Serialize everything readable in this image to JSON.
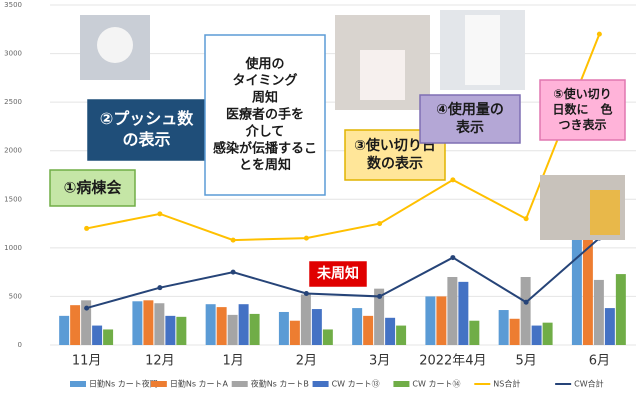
{
  "chart_data": {
    "type": "bar",
    "categories": [
      "11月",
      "12月",
      "1月",
      "2月",
      "3月",
      "2022年4月",
      "5月",
      "6月"
    ],
    "ylim": [
      0,
      3500
    ],
    "yticks": [
      0,
      500,
      1000,
      1500,
      2000,
      2500,
      3000,
      3500
    ],
    "grid": true,
    "series": [
      {
        "name": "日勤Ns カート夜間",
        "color": "#5b9bd5",
        "values": [
          300,
          450,
          420,
          340,
          380,
          500,
          360,
          1100
        ]
      },
      {
        "name": "日勤Ns カートA",
        "color": "#ed7d31",
        "values": [
          410,
          460,
          390,
          250,
          300,
          500,
          270,
          1100
        ]
      },
      {
        "name": "夜勤Ns カートB",
        "color": "#a5a5a5",
        "values": [
          460,
          430,
          310,
          520,
          580,
          700,
          700,
          670
        ]
      },
      {
        "name": "CW カート⑬",
        "color": "#4472c4",
        "values": [
          200,
          300,
          420,
          370,
          280,
          650,
          200,
          380
        ]
      },
      {
        "name": "CW カート⑭",
        "color": "#70ad47",
        "values": [
          160,
          290,
          320,
          160,
          200,
          250,
          230,
          730
        ]
      },
      {
        "name": "NS合計",
        "type": "line",
        "color": "#ffc000",
        "values": [
          1200,
          1350,
          1080,
          1100,
          1250,
          1700,
          1300,
          3200
        ]
      },
      {
        "name": "CW合計",
        "type": "line",
        "color": "#264478",
        "values": [
          380,
          590,
          750,
          530,
          500,
          900,
          440,
          1100
        ]
      }
    ],
    "annotations": [
      {
        "lines": [
          "①病棟会"
        ]
      },
      {
        "lines": [
          "②プッシュ数",
          "の表示"
        ]
      },
      {
        "lines": [
          "使用の",
          "タイミング",
          "周知",
          "医療者の手を",
          "介して",
          "感染が伝播するこ",
          "とを周知"
        ]
      },
      {
        "lines": [
          "③使い切り日",
          "数の表示"
        ]
      },
      {
        "lines": [
          "④使用量の",
          "表示"
        ]
      },
      {
        "lines": [
          "⑤使い切り",
          "日数に　色",
          "つき表示"
        ]
      },
      {
        "lines": [
          "未周知"
        ]
      }
    ]
  }
}
